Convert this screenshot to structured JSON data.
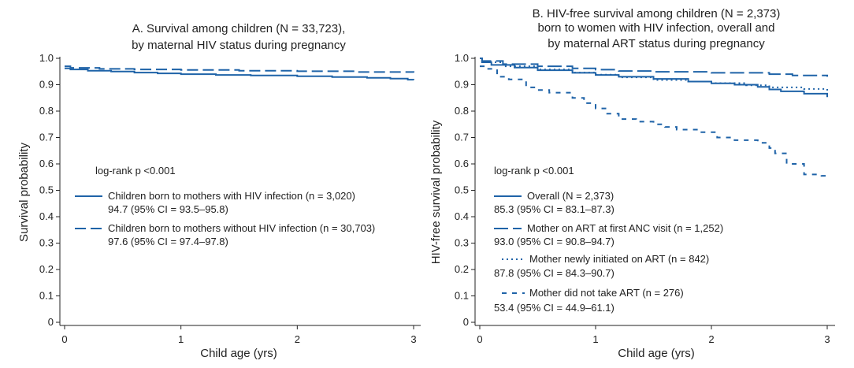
{
  "colors": {
    "line": "#1f63a8",
    "axis": "#222222",
    "background": "#ffffff"
  },
  "chart_data": [
    {
      "id": "A",
      "type": "line",
      "title": [
        "A. Survival among children  (N = 33,723),",
        "by maternal HIV status during pregnancy"
      ],
      "xlabel": "Child age (yrs)",
      "ylabel": "Survival probability",
      "xlim": [
        0,
        3
      ],
      "ylim": [
        0,
        1
      ],
      "xticks": [
        0,
        1,
        2,
        3
      ],
      "yticks": [
        0,
        0.1,
        0.2,
        0.3,
        0.4,
        0.5,
        0.6,
        0.7,
        0.8,
        0.9,
        1.0
      ],
      "ytick_labels": [
        "0",
        "0.1",
        "0.2",
        "0.3",
        "0.4",
        "0.5",
        "0.6",
        "0.7",
        "0.8",
        "0.9",
        "1.0"
      ],
      "annotation": "log-rank p <0.001",
      "series": [
        {
          "name": "Children born to mothers with HIV infection (n = 3,020)",
          "ci": "94.7 (95% CI = 93.5–95.8)",
          "style": "solid",
          "x": [
            0,
            0.05,
            0.2,
            0.4,
            0.6,
            0.8,
            1.0,
            1.3,
            1.6,
            2.0,
            2.3,
            2.6,
            2.8,
            2.95,
            3.0
          ],
          "y": [
            0.962,
            0.958,
            0.953,
            0.95,
            0.946,
            0.943,
            0.94,
            0.937,
            0.935,
            0.932,
            0.929,
            0.926,
            0.923,
            0.919,
            0.918
          ]
        },
        {
          "name": "Children born to mothers without HIV infection (n = 30,703)",
          "ci": "97.6 (95% CI = 97.4–97.8)",
          "style": "dashed",
          "x": [
            0,
            0.05,
            0.3,
            0.6,
            1.0,
            1.5,
            2.0,
            2.5,
            3.0
          ],
          "y": [
            0.97,
            0.964,
            0.96,
            0.958,
            0.956,
            0.953,
            0.951,
            0.948,
            0.946
          ]
        }
      ]
    },
    {
      "id": "B",
      "type": "line",
      "title": [
        "B. HIV-free survival among children (N = 2,373)",
        "born to women with HIV infection, overall and",
        "by maternal ART status during pregnancy"
      ],
      "xlabel": "Child age (yrs)",
      "ylabel": "HIV-free survival probability",
      "xlim": [
        0,
        3
      ],
      "ylim": [
        0,
        1
      ],
      "xticks": [
        0,
        1,
        2,
        3
      ],
      "yticks": [
        0,
        0.1,
        0.2,
        0.3,
        0.4,
        0.5,
        0.6,
        0.7,
        0.8,
        0.9,
        1.0
      ],
      "ytick_labels": [
        "0",
        "0.1",
        "0.2",
        "0.3",
        "0.4",
        "0.5",
        "0.6",
        "0.7",
        "0.8",
        "0.9",
        "1.0"
      ],
      "annotation": "log-rank p <0.001",
      "series": [
        {
          "name": "Overall (N = 2,373)",
          "ci": "85.3 (95% CI = 83.1–87.3)",
          "style": "solid",
          "x": [
            0,
            0.02,
            0.1,
            0.3,
            0.5,
            0.8,
            1.0,
            1.2,
            1.5,
            1.8,
            2.0,
            2.2,
            2.4,
            2.5,
            2.6,
            2.8,
            3.0
          ],
          "y": [
            1.0,
            0.985,
            0.975,
            0.965,
            0.955,
            0.945,
            0.937,
            0.93,
            0.922,
            0.912,
            0.905,
            0.9,
            0.892,
            0.882,
            0.875,
            0.866,
            0.853
          ]
        },
        {
          "name": "Mother on ART at first ANC visit (n = 1,252)",
          "ci": "93.0 (95% CI = 90.8–94.7)",
          "style": "longdash",
          "x": [
            0,
            0.02,
            0.2,
            0.5,
            0.8,
            1.0,
            1.2,
            1.5,
            2.0,
            2.5,
            2.7,
            3.0
          ],
          "y": [
            1.0,
            0.99,
            0.978,
            0.97,
            0.962,
            0.957,
            0.952,
            0.949,
            0.945,
            0.94,
            0.935,
            0.93
          ]
        },
        {
          "name": "Mother newly initiated on ART (n = 842)",
          "ci": "87.8 (95% CI = 84.3–90.7)",
          "style": "dotted",
          "x": [
            0,
            0.02,
            0.2,
            0.5,
            0.8,
            1.0,
            1.2,
            1.5,
            1.8,
            2.0,
            2.3,
            2.5,
            2.8,
            3.0
          ],
          "y": [
            1.0,
            0.985,
            0.97,
            0.958,
            0.946,
            0.938,
            0.928,
            0.918,
            0.912,
            0.906,
            0.898,
            0.89,
            0.884,
            0.878
          ]
        },
        {
          "name": "Mother did not take ART (n = 276)",
          "ci": "53.4 (95% CI = 44.9–61.1)",
          "style": "shortdash",
          "x": [
            0,
            0.05,
            0.15,
            0.25,
            0.4,
            0.5,
            0.6,
            0.8,
            0.9,
            1.0,
            1.1,
            1.2,
            1.35,
            1.5,
            1.6,
            1.7,
            1.9,
            2.05,
            2.2,
            2.4,
            2.5,
            2.55,
            2.65,
            2.8,
            2.95,
            3.0
          ],
          "y": [
            0.97,
            0.96,
            0.93,
            0.92,
            0.89,
            0.88,
            0.87,
            0.85,
            0.83,
            0.81,
            0.79,
            0.77,
            0.76,
            0.75,
            0.74,
            0.73,
            0.72,
            0.7,
            0.69,
            0.68,
            0.66,
            0.64,
            0.6,
            0.56,
            0.555,
            0.54
          ]
        }
      ]
    }
  ]
}
